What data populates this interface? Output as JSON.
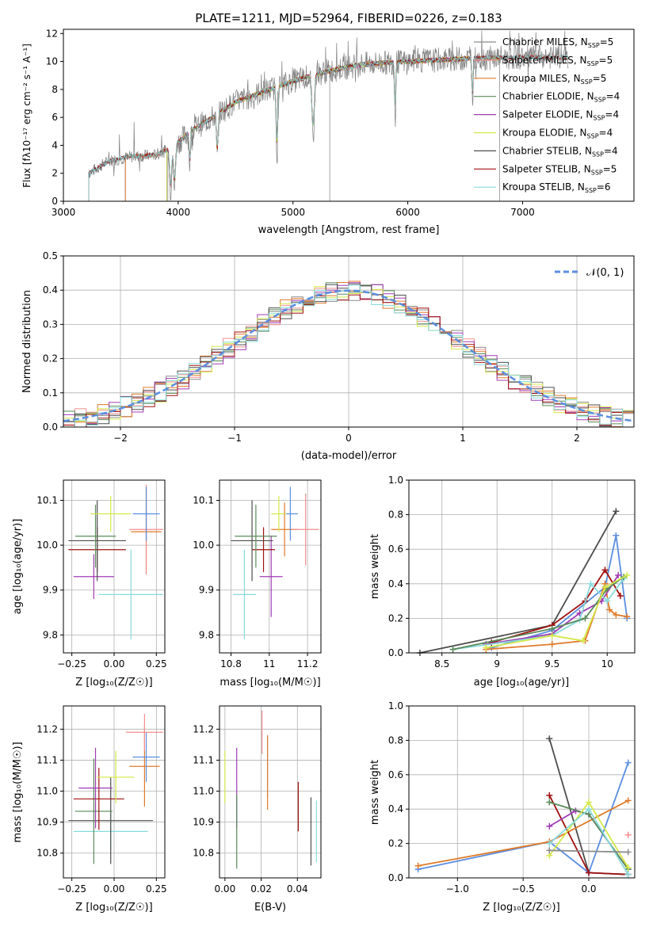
{
  "colors": {
    "Chabrier MILES": "#8c8c8c",
    "Salpeter MILES": "#f28e8e",
    "Kroupa MILES": "#e07b2a",
    "Chabrier ELODIE": "#5a8a5a",
    "Salpeter ELODIE": "#a03cb4",
    "Kroupa ELODIE": "#d4e84a",
    "Chabrier STELIB": "#4d4d4d",
    "Salpeter STELIB": "#a01010",
    "Kroupa STELIB": "#88dada",
    "Gaussian": "#5b8ee0",
    "grid": "#b0b0b0"
  },
  "chart_data": [
    {
      "id": "spectrum",
      "type": "line",
      "title": "PLATE=1211, MJD=52964, FIBERID=0226, z=0.183",
      "xlabel": "wavelength [Angstrom, rest frame]",
      "ylabel": "Flux [fλ10⁻¹⁷ erg cm⁻² s⁻¹ A⁻¹]",
      "xlim": [
        3000,
        7970
      ],
      "ylim": [
        0,
        12.3
      ],
      "xticks": [
        3000,
        4000,
        5000,
        6000,
        7000
      ],
      "yticks": [
        0,
        2,
        4,
        6,
        8,
        10,
        12
      ],
      "grid": false,
      "legend": "top-right",
      "observed_range": [
        3220,
        7400
      ],
      "continuum": [
        [
          3220,
          2.0
        ],
        [
          3400,
          2.9
        ],
        [
          3600,
          3.2
        ],
        [
          3800,
          3.3
        ],
        [
          3950,
          3.8
        ],
        [
          4100,
          5.0
        ],
        [
          4300,
          6.0
        ],
        [
          4500,
          7.1
        ],
        [
          4800,
          8.0
        ],
        [
          5000,
          8.6
        ],
        [
          5300,
          9.3
        ],
        [
          5600,
          9.8
        ],
        [
          6000,
          10.0
        ],
        [
          6500,
          10.2
        ],
        [
          7000,
          10.3
        ],
        [
          7400,
          10.3
        ]
      ],
      "series": [
        {
          "name": "Chabrier MILES, N_SSP=5",
          "model_range": [
            3540,
            7400
          ]
        },
        {
          "name": "Salpeter MILES, N_SSP=5",
          "model_range": [
            3540,
            7400
          ]
        },
        {
          "name": "Kroupa MILES, N_SSP=5",
          "model_range": [
            3540,
            6800
          ]
        },
        {
          "name": "Chabrier ELODIE, N_SSP=4",
          "model_range": [
            3900,
            6800
          ]
        },
        {
          "name": "Salpeter ELODIE, N_SSP=4",
          "model_range": [
            3900,
            6800
          ]
        },
        {
          "name": "Kroupa ELODIE, N_SSP=4",
          "model_range": [
            3900,
            6800
          ]
        },
        {
          "name": "Chabrier STELIB, N_SSP=4",
          "model_range": [
            3220,
            7400
          ]
        },
        {
          "name": "Salpeter STELIB, N_SSP=5",
          "model_range": [
            3220,
            7400
          ]
        },
        {
          "name": "Kroupa STELIB, N_SSP=6",
          "model_range": [
            3220,
            7400
          ]
        }
      ]
    },
    {
      "id": "residuals",
      "type": "line",
      "xlabel": "(data-model)/error",
      "ylabel": "Normed distribution",
      "xlim": [
        -2.5,
        2.5
      ],
      "ylim": [
        0,
        0.5
      ],
      "xticks": [
        -2,
        -1,
        0,
        1,
        2
      ],
      "yticks": [
        0.0,
        0.1,
        0.2,
        0.3,
        0.4,
        0.5
      ],
      "grid": true,
      "legend": "top-right",
      "reference": {
        "name": "𝒩(0, 1)",
        "mean": 0,
        "sigma": 1
      }
    },
    {
      "id": "age_vs_Z",
      "type": "scatter",
      "xlabel": "Z [log₁₀(Z/Z☉)]",
      "ylabel": "age  [log₁₀(age/yr)]",
      "xlim": [
        -0.3,
        0.3
      ],
      "ylim": [
        9.76,
        10.145
      ],
      "xticks": [
        -0.25,
        0.0,
        0.25
      ],
      "xticklabels": [
        "−0.25",
        "0.00",
        "0.25"
      ],
      "yticks": [
        9.8,
        9.9,
        10.0,
        10.1
      ],
      "grid": true,
      "points": [
        {
          "series": "Kroupa STELIB",
          "x": 0.1,
          "y": 9.89,
          "xerr": 0.19,
          "yerr": 0.1
        },
        {
          "series": "Salpeter ELODIE",
          "x": -0.12,
          "y": 9.93,
          "xerr": 0.12,
          "yerr": 0.05
        },
        {
          "series": "Salpeter STELIB",
          "x": -0.1,
          "y": 9.99,
          "xerr": 0.17,
          "yerr": 0.05
        },
        {
          "series": "Chabrier STELIB",
          "x": -0.1,
          "y": 10.01,
          "xerr": 0.17,
          "yerr": 0.09
        },
        {
          "series": "Chabrier ELODIE",
          "x": -0.11,
          "y": 10.02,
          "xerr": 0.12,
          "yerr": 0.07
        },
        {
          "series": "Kroupa MILES",
          "x": 0.19,
          "y": 10.03,
          "xerr": 0.09,
          "yerr": 0.095
        },
        {
          "series": "Salpeter MILES",
          "x": 0.19,
          "y": 10.035,
          "xerr": 0.1,
          "yerr": 0.1
        },
        {
          "series": "Gaussian",
          "x": 0.19,
          "y": 10.07,
          "xerr": 0.08,
          "yerr": 0.06
        },
        {
          "series": "Kroupa ELODIE",
          "x": -0.02,
          "y": 10.07,
          "xerr": 0.12,
          "yerr": 0.04
        }
      ]
    },
    {
      "id": "age_vs_mass",
      "type": "scatter",
      "xlabel": "mass [log₁₀(M/M☉)]",
      "xlim": [
        10.74,
        11.27
      ],
      "ylim": [
        9.76,
        10.145
      ],
      "xticks": [
        10.8,
        11.0,
        11.2
      ],
      "yticks": [
        9.8,
        9.9,
        10.0,
        10.1
      ],
      "grid": true,
      "points": [
        {
          "series": "Kroupa STELIB",
          "x": 10.87,
          "y": 9.89,
          "xerr": 0.06,
          "yerr": 0.1
        },
        {
          "series": "Salpeter ELODIE",
          "x": 11.01,
          "y": 9.93,
          "xerr": 0.06,
          "yerr": 0.09
        },
        {
          "series": "Salpeter STELIB",
          "x": 10.97,
          "y": 9.99,
          "xerr": 0.06,
          "yerr": 0.05
        },
        {
          "series": "Chabrier STELIB",
          "x": 10.91,
          "y": 10.01,
          "xerr": 0.11,
          "yerr": 0.09
        },
        {
          "series": "Chabrier ELODIE",
          "x": 10.93,
          "y": 10.02,
          "xerr": 0.11,
          "yerr": 0.07
        },
        {
          "series": "Kroupa MILES",
          "x": 11.08,
          "y": 10.035,
          "xerr": 0.07,
          "yerr": 0.06
        },
        {
          "series": "Salpeter MILES",
          "x": 11.19,
          "y": 10.035,
          "xerr": 0.07,
          "yerr": 0.08
        },
        {
          "series": "Gaussian",
          "x": 11.11,
          "y": 10.07,
          "xerr": 0.04,
          "yerr": 0.06
        },
        {
          "series": "Kroupa ELODIE",
          "x": 11.05,
          "y": 10.07,
          "xerr": 0.04,
          "yerr": 0.04
        }
      ]
    },
    {
      "id": "weight_vs_age",
      "type": "line",
      "xlabel": "age  [log₁₀(age/yr)]",
      "ylabel": "mass weight",
      "xlim": [
        8.2,
        10.25
      ],
      "ylim": [
        0.0,
        1.0
      ],
      "xticks": [
        8.5,
        9.0,
        9.5,
        10.0
      ],
      "yticks": [
        0.0,
        0.2,
        0.4,
        0.6,
        0.8,
        1.0
      ],
      "grid": true,
      "series": [
        {
          "key": "Chabrier STELIB",
          "x": [
            8.3,
            9.5,
            10.08
          ],
          "y": [
            0.0,
            0.16,
            0.82
          ]
        },
        {
          "key": "Gaussian",
          "x": [
            8.95,
            9.5,
            9.98,
            10.08,
            10.18
          ],
          "y": [
            0.03,
            0.13,
            0.38,
            0.68,
            0.2
          ]
        },
        {
          "key": "Kroupa MILES",
          "x": [
            8.9,
            9.5,
            9.8,
            9.98,
            10.02,
            10.08,
            10.18
          ],
          "y": [
            0.02,
            0.05,
            0.07,
            0.4,
            0.25,
            0.22,
            0.21
          ]
        },
        {
          "key": "Salpeter STELIB",
          "x": [
            8.95,
            9.5,
            9.8,
            9.98,
            10.12
          ],
          "y": [
            0.06,
            0.16,
            0.3,
            0.48,
            0.33
          ]
        },
        {
          "key": "Salpeter ELODIE",
          "x": [
            8.9,
            9.5,
            9.75,
            9.95,
            10.1
          ],
          "y": [
            0.05,
            0.11,
            0.23,
            0.3,
            0.45
          ]
        },
        {
          "key": "Kroupa STELIB",
          "x": [
            8.6,
            9.5,
            9.75,
            9.85,
            10.0,
            10.15
          ],
          "y": [
            0.02,
            0.1,
            0.19,
            0.4,
            0.3,
            0.43
          ]
        },
        {
          "key": "Chabrier ELODIE",
          "x": [
            8.6,
            9.5,
            9.8,
            10.0,
            10.15
          ],
          "y": [
            0.02,
            0.14,
            0.2,
            0.37,
            0.44
          ]
        },
        {
          "key": "Kroupa ELODIE",
          "x": [
            8.9,
            9.5,
            9.78,
            9.98,
            10.18
          ],
          "y": [
            0.03,
            0.1,
            0.07,
            0.38,
            0.45
          ]
        }
      ]
    },
    {
      "id": "mass_vs_Z",
      "type": "scatter",
      "xlabel": "Z [log₁₀(Z/Z☉)]",
      "ylabel": "mass [log₁₀(M/M☉)]",
      "xlim": [
        -0.3,
        0.3
      ],
      "ylim": [
        10.72,
        11.275
      ],
      "xticks": [
        -0.25,
        0.0,
        0.25
      ],
      "xticklabels": [
        "−0.25",
        "0.00",
        "0.25"
      ],
      "yticks": [
        10.8,
        10.9,
        11.0,
        11.1,
        11.2
      ],
      "grid": true,
      "points": [
        {
          "series": "Kroupa STELIB",
          "x": -0.02,
          "y": 10.87,
          "xerr": 0.22,
          "yerr": 0.06
        },
        {
          "series": "Chabrier STELIB",
          "x": -0.02,
          "y": 10.905,
          "xerr": 0.25,
          "yerr": 0.14
        },
        {
          "series": "Chabrier ELODIE",
          "x": -0.12,
          "y": 10.935,
          "xerr": 0.11,
          "yerr": 0.17
        },
        {
          "series": "Salpeter STELIB",
          "x": -0.09,
          "y": 10.975,
          "xerr": 0.15,
          "yerr": 0.1
        },
        {
          "series": "Salpeter ELODIE",
          "x": -0.11,
          "y": 11.01,
          "xerr": 0.1,
          "yerr": 0.13
        },
        {
          "series": "Kroupa ELODIE",
          "x": 0.01,
          "y": 11.045,
          "xerr": 0.11,
          "yerr": 0.085
        },
        {
          "series": "Kroupa MILES",
          "x": 0.18,
          "y": 11.08,
          "xerr": 0.09,
          "yerr": 0.13
        },
        {
          "series": "Gaussian",
          "x": 0.19,
          "y": 11.11,
          "xerr": 0.08,
          "yerr": 0.08
        },
        {
          "series": "Salpeter MILES",
          "x": 0.18,
          "y": 11.19,
          "xerr": 0.11,
          "yerr": 0.06
        }
      ]
    },
    {
      "id": "mass_vs_EBV",
      "type": "scatter",
      "xlabel": "E(B-V)",
      "xlim": [
        -0.003,
        0.053
      ],
      "ylim": [
        10.72,
        11.275
      ],
      "xticks": [
        0.0,
        0.02,
        0.04
      ],
      "xticklabels": [
        "0.00",
        "0.02",
        "0.04"
      ],
      "yticks": [
        10.8,
        10.9,
        11.0,
        11.1,
        11.2
      ],
      "grid": true,
      "points": [
        {
          "series": "Kroupa ELODIE",
          "x": 0.0,
          "y": 11.045,
          "yerr": 0.085
        },
        {
          "series": "Salpeter ELODIE",
          "x": 0.0065,
          "y": 11.01,
          "yerr": 0.13
        },
        {
          "series": "Chabrier ELODIE",
          "x": 0.0065,
          "y": 10.87,
          "yerr": 0.12
        },
        {
          "series": "Salpeter MILES",
          "x": 0.0205,
          "y": 11.19,
          "yerr": 0.07
        },
        {
          "series": "Gaussian",
          "x": 0.0235,
          "y": 11.08,
          "yerr": 0.1
        },
        {
          "series": "Kroupa MILES",
          "x": 0.0235,
          "y": 11.06,
          "yerr": 0.12
        },
        {
          "series": "Salpeter STELIB",
          "x": 0.0405,
          "y": 10.95,
          "yerr": 0.08
        },
        {
          "series": "Chabrier STELIB",
          "x": 0.0475,
          "y": 10.87,
          "yerr": 0.11
        },
        {
          "series": "Kroupa STELIB",
          "x": 0.0505,
          "y": 10.87,
          "yerr": 0.1
        }
      ]
    },
    {
      "id": "weight_vs_Z",
      "type": "line",
      "xlabel": "Z [log₁₀(Z/Z☉)]",
      "ylabel": "mass weight",
      "xlim": [
        -1.37,
        0.35
      ],
      "ylim": [
        0.0,
        1.0
      ],
      "xticks": [
        -1.0,
        -0.5,
        0.0
      ],
      "xticklabels": [
        "−1.0",
        "−0.5",
        "0.0"
      ],
      "yticks": [
        0.0,
        0.2,
        0.4,
        0.6,
        0.8,
        1.0
      ],
      "grid": true,
      "series": [
        {
          "key": "Chabrier STELIB",
          "x": [
            -0.3,
            0.0,
            0.3
          ],
          "y": [
            0.81,
            0.03,
            0.02
          ]
        },
        {
          "key": "Gaussian",
          "x": [
            -1.3,
            -0.3,
            0.0,
            0.3
          ],
          "y": [
            0.05,
            0.21,
            0.03,
            0.67
          ]
        },
        {
          "key": "Kroupa MILES",
          "x": [
            -1.3,
            -0.3,
            0.3
          ],
          "y": [
            0.07,
            0.21,
            0.45
          ]
        },
        {
          "key": "Salpeter STELIB",
          "x": [
            -0.3,
            0.0,
            0.3
          ],
          "y": [
            0.48,
            0.03,
            0.02
          ]
        },
        {
          "key": "Salpeter ELODIE",
          "x": [
            -0.3,
            -0.1,
            0.0,
            0.3
          ],
          "y": [
            0.3,
            0.39,
            0.37,
            0.05
          ]
        },
        {
          "key": "Chabrier ELODIE",
          "x": [
            -0.3,
            0.0,
            0.3
          ],
          "y": [
            0.44,
            0.37,
            0.05
          ]
        },
        {
          "key": "Kroupa ELODIE",
          "x": [
            -0.3,
            0.0,
            0.3
          ],
          "y": [
            0.13,
            0.44,
            0.06
          ]
        },
        {
          "key": "Kroupa STELIB",
          "x": [
            -0.3,
            0.0,
            0.3
          ],
          "y": [
            0.2,
            0.4,
            0.02
          ]
        },
        {
          "key": "Chabrier MILES",
          "x": [
            -0.3,
            0.3
          ],
          "y": [
            0.16,
            0.15
          ]
        },
        {
          "key": "Salpeter MILES",
          "x": [
            0.3
          ],
          "y": [
            0.25
          ]
        }
      ]
    }
  ]
}
